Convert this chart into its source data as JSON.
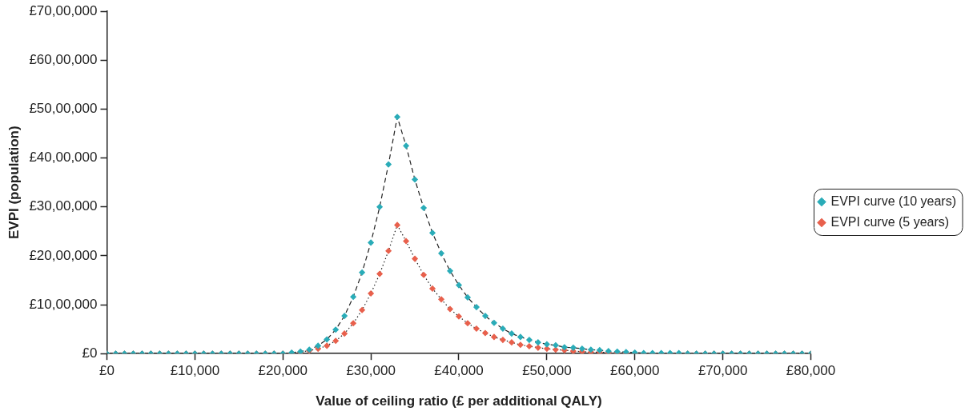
{
  "chart_data": {
    "type": "line",
    "xlabel": "Value of ceiling ratio (£ per additional QALY)",
    "ylabel": "EVPI (population)",
    "x": [
      0,
      1000,
      2000,
      3000,
      4000,
      5000,
      6000,
      7000,
      8000,
      9000,
      10000,
      11000,
      12000,
      13000,
      14000,
      15000,
      16000,
      17000,
      18000,
      19000,
      20000,
      21000,
      22000,
      23000,
      24000,
      25000,
      26000,
      27000,
      28000,
      29000,
      30000,
      31000,
      32000,
      33000,
      34000,
      35000,
      36000,
      37000,
      38000,
      39000,
      40000,
      41000,
      42000,
      43000,
      44000,
      45000,
      46000,
      47000,
      48000,
      49000,
      50000,
      51000,
      52000,
      53000,
      54000,
      55000,
      56000,
      57000,
      58000,
      59000,
      60000,
      61000,
      62000,
      63000,
      64000,
      65000,
      66000,
      67000,
      68000,
      69000,
      70000,
      71000,
      72000,
      73000,
      74000,
      75000,
      76000,
      77000,
      78000,
      79000,
      80000
    ],
    "series": [
      {
        "name": "EVPI curve (10 years)",
        "color": "#2aacb8",
        "line_style": "dashed",
        "values": [
          0,
          0,
          0,
          0,
          0,
          0,
          0,
          0,
          0,
          0,
          0,
          0,
          0,
          0,
          0,
          0,
          0,
          0,
          0,
          0,
          0,
          20000,
          40000,
          80000,
          160000,
          290000,
          490000,
          770000,
          1160000,
          1660000,
          2270000,
          3000000,
          3870000,
          4840000,
          4250000,
          3560000,
          2980000,
          2470000,
          2050000,
          1690000,
          1400000,
          1150000,
          950000,
          770000,
          630000,
          510000,
          410000,
          340000,
          280000,
          230000,
          190000,
          170000,
          130000,
          120000,
          100000,
          80000,
          70000,
          50000,
          40000,
          30000,
          20000,
          10000,
          10000,
          10000,
          10000,
          10000,
          0,
          0,
          0,
          0,
          0,
          0,
          0,
          0,
          0,
          0,
          0,
          0,
          0,
          0,
          0
        ]
      },
      {
        "name": "EVPI curve (5 years)",
        "color": "#e8604c",
        "line_style": "dotted",
        "values": [
          0,
          0,
          0,
          0,
          0,
          0,
          0,
          0,
          0,
          0,
          0,
          0,
          0,
          0,
          0,
          0,
          0,
          0,
          0,
          0,
          0,
          10000,
          30000,
          60000,
          100000,
          160000,
          260000,
          410000,
          620000,
          890000,
          1230000,
          1630000,
          2100000,
          2630000,
          2300000,
          1940000,
          1610000,
          1330000,
          1110000,
          910000,
          760000,
          620000,
          510000,
          420000,
          340000,
          280000,
          230000,
          180000,
          150000,
          120000,
          100000,
          80000,
          70000,
          50000,
          40000,
          30000,
          30000,
          20000,
          20000,
          10000,
          10000,
          0,
          0,
          0,
          0,
          0,
          0,
          0,
          0,
          0,
          0,
          0,
          0,
          0,
          0,
          0,
          0,
          0,
          0,
          0,
          0
        ]
      }
    ],
    "xlim": [
      0,
      80000
    ],
    "xticks": [
      {
        "value": 0,
        "label": "£0"
      },
      {
        "value": 10000,
        "label": "£10,000"
      },
      {
        "value": 20000,
        "label": "£20,000"
      },
      {
        "value": 30000,
        "label": "£30,000"
      },
      {
        "value": 40000,
        "label": "£40,000"
      },
      {
        "value": 50000,
        "label": "£50,000"
      },
      {
        "value": 60000,
        "label": "£60,000"
      },
      {
        "value": 70000,
        "label": "£70,000"
      },
      {
        "value": 80000,
        "label": "£80,000"
      }
    ],
    "ylim": [
      0,
      7000000
    ],
    "yticks": [
      {
        "value": 0,
        "label": "£0"
      },
      {
        "value": 1000000,
        "label": "£10,00,000"
      },
      {
        "value": 2000000,
        "label": "£20,00,000"
      },
      {
        "value": 3000000,
        "label": "£30,00,000"
      },
      {
        "value": 4000000,
        "label": "£40,00,000"
      },
      {
        "value": 5000000,
        "label": "£50,00,000"
      },
      {
        "value": 6000000,
        "label": "£60,00,000"
      },
      {
        "value": 7000000,
        "label": "£70,00,000"
      }
    ],
    "grid": false,
    "legend": "right",
    "marker": "diamond"
  }
}
